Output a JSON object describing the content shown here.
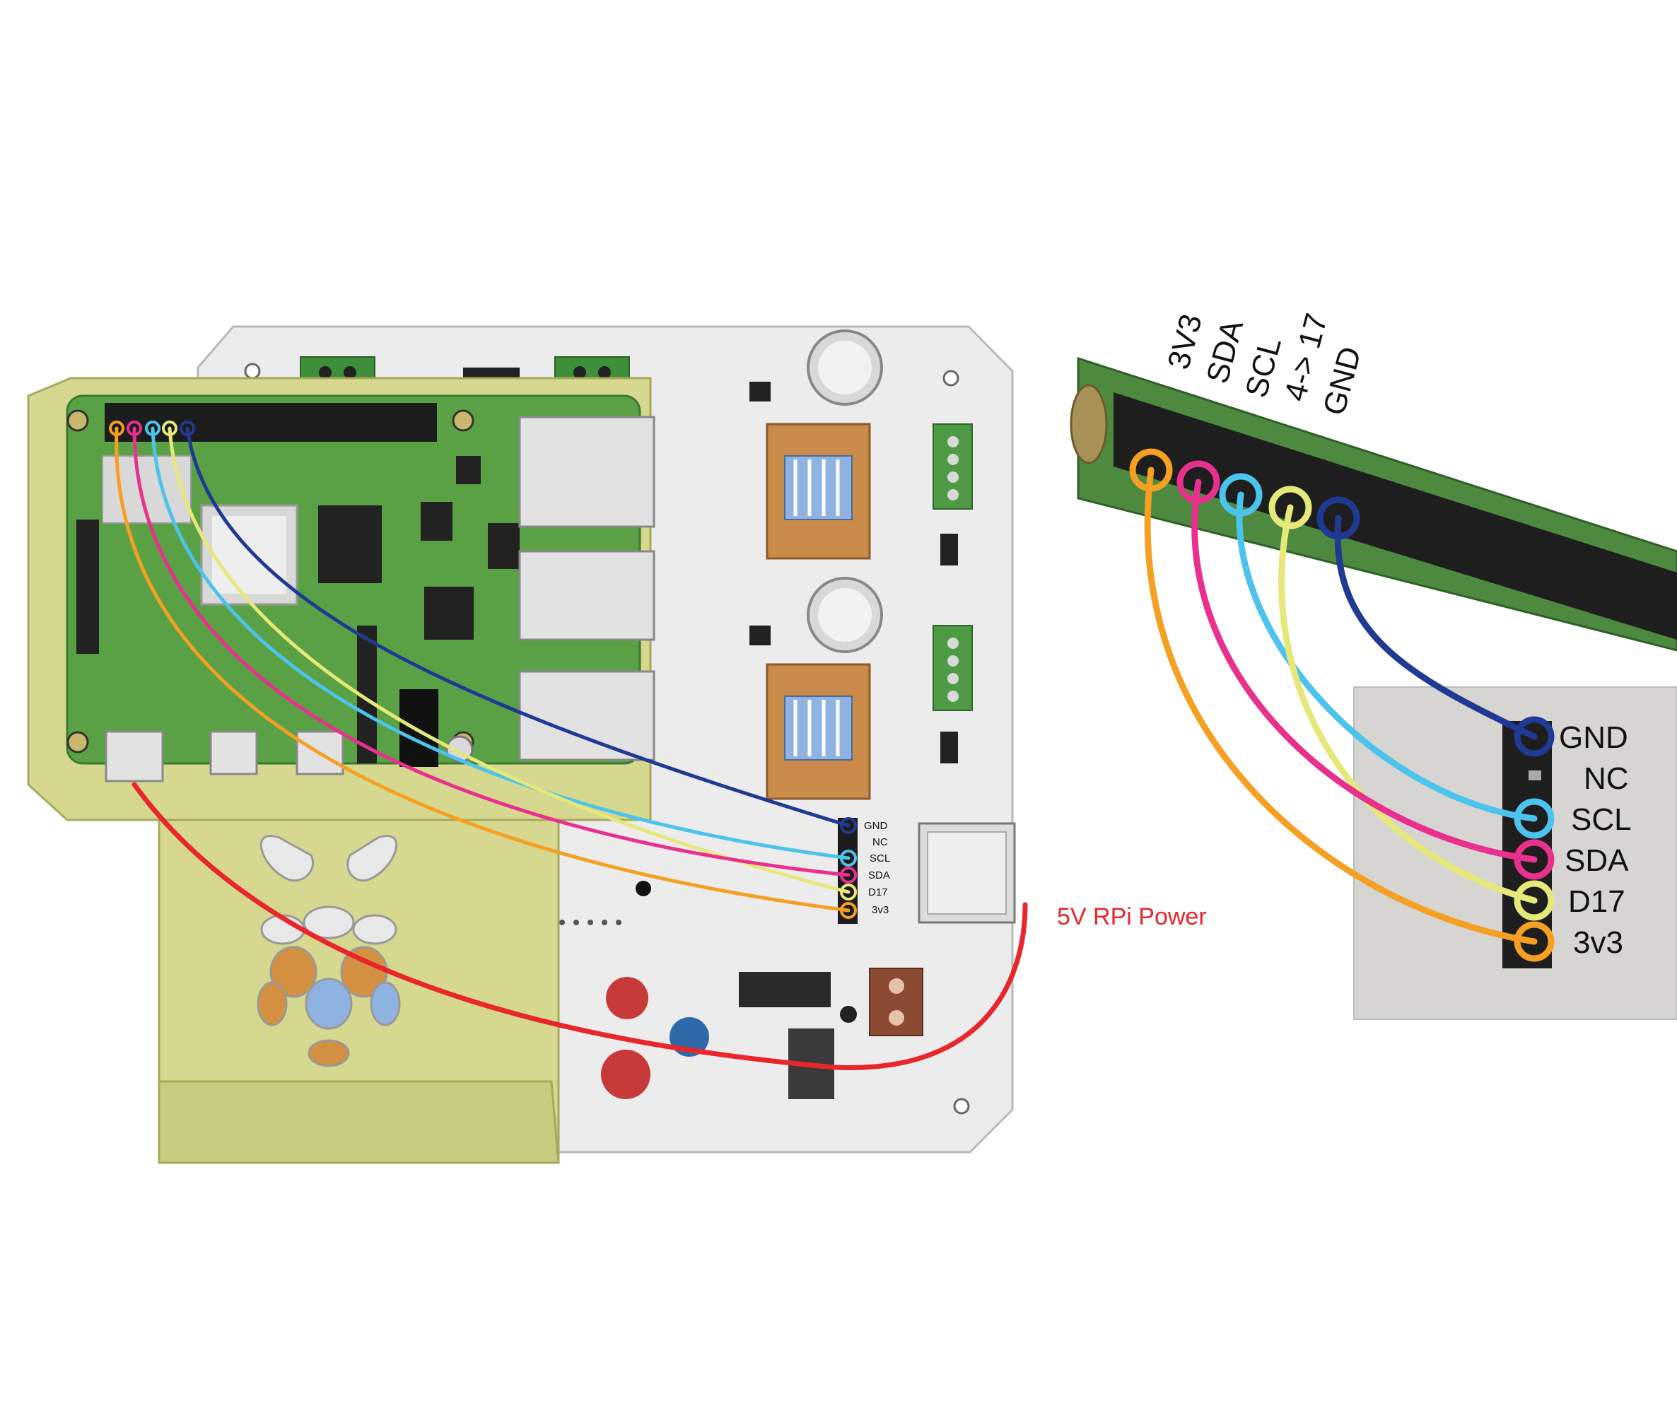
{
  "colors": {
    "gnd": "#1f3a93",
    "scl": "#4cc3ec",
    "sda": "#e8318f",
    "d17": "#e6e87a",
    "v33": "#f5a023",
    "power": "#e8262b",
    "board": "#ececec",
    "pcb": "#5aa145",
    "case": "#d5d88e",
    "header": "#1c1c1c",
    "driver": "#c98a4a",
    "heatsink": "#8fb3e0"
  },
  "board_connector_labels": [
    "GND",
    "NC",
    "SCL",
    "SDA",
    "D17",
    "3v3"
  ],
  "zoom_connector_labels": [
    "GND",
    "NC",
    "SCL",
    "SDA",
    "D17",
    "3v3"
  ],
  "gpio_pin_labels": [
    "3V3",
    "SDA",
    "SCL",
    "4-> 17",
    "GND"
  ],
  "power_label": "5V RPi Power",
  "icons": [
    "raspberry-logo-icon"
  ]
}
